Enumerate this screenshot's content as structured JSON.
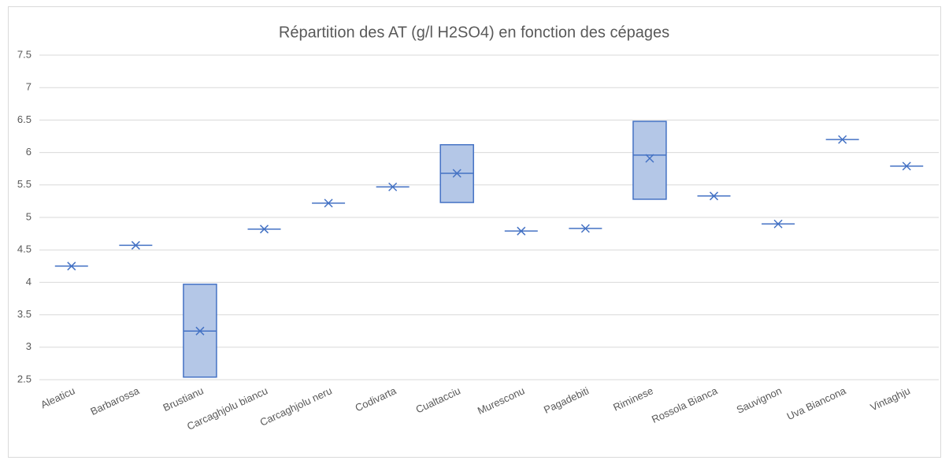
{
  "chart_data": {
    "type": "box",
    "title": "Répartition des AT (g/l H2SO4) en fonction des cépages",
    "categories": [
      "Aleaticu",
      "Barbarossa",
      "Brustianu",
      "Carcaghjolu biancu",
      "Carcaghjolu neru",
      "Codivarta",
      "Cualtacciu",
      "Muresconu",
      "Pagadebiti",
      "Riminese",
      "Rossola Bianca",
      "Sauvignon",
      "Uva Biancona",
      "Vintaghju"
    ],
    "q1": [
      4.25,
      4.57,
      2.54,
      4.82,
      5.22,
      5.47,
      5.23,
      4.79,
      4.83,
      5.28,
      5.33,
      4.9,
      6.2,
      5.79
    ],
    "median": [
      4.25,
      4.57,
      3.25,
      4.82,
      5.22,
      5.47,
      5.68,
      4.79,
      4.83,
      5.96,
      5.33,
      4.9,
      6.2,
      5.79
    ],
    "q3": [
      4.25,
      4.57,
      3.97,
      4.82,
      5.22,
      5.47,
      6.12,
      4.79,
      4.83,
      6.48,
      5.33,
      4.9,
      6.2,
      5.79
    ],
    "mean": [
      4.25,
      4.57,
      3.25,
      4.82,
      5.22,
      5.47,
      5.68,
      4.79,
      4.83,
      5.91,
      5.33,
      4.9,
      6.2,
      5.79
    ],
    "color": "#4472c4",
    "fill": "#b4c7e7",
    "ylim": [
      2.5,
      7.5
    ],
    "yticks": [
      2.5,
      3,
      3.5,
      4,
      4.5,
      5,
      5.5,
      6,
      6.5,
      7,
      7.5
    ],
    "grid": true
  }
}
